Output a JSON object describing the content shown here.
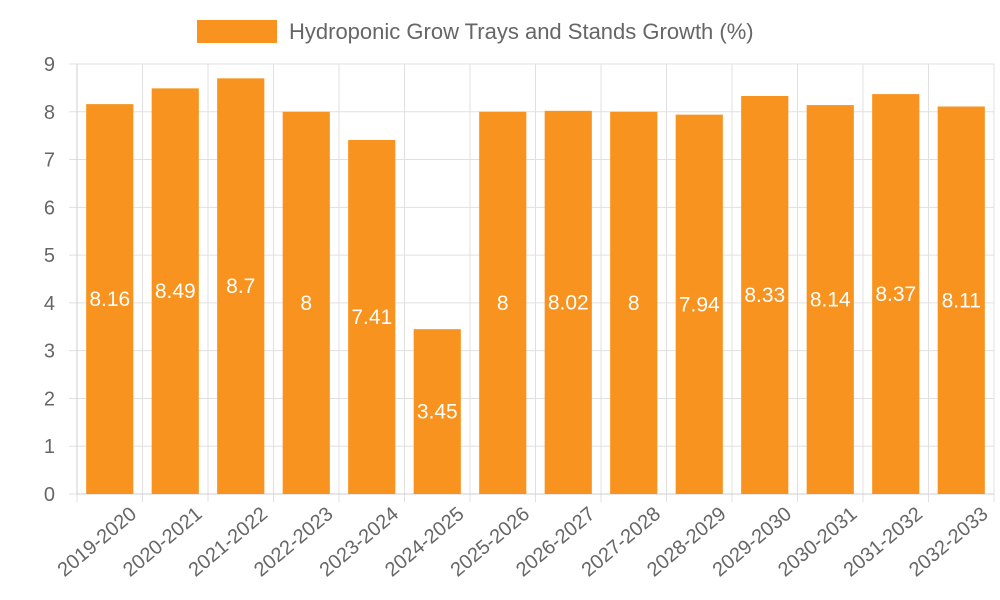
{
  "chart_data": {
    "type": "bar",
    "title": "",
    "legend": {
      "label": "Hydroponic Grow Trays and Stands Growth (%)",
      "position": "top"
    },
    "series": [
      {
        "name": "Hydroponic Grow Trays and Stands Growth (%)",
        "color": "#f7931e",
        "values": [
          8.16,
          8.49,
          8.7,
          8,
          7.41,
          3.45,
          8,
          8.02,
          8,
          7.94,
          8.33,
          8.14,
          8.37,
          8.11
        ]
      }
    ],
    "categories": [
      "2019-2020",
      "2020-2021",
      "2021-2022",
      "2022-2023",
      "2023-2024",
      "2024-2025",
      "2025-2026",
      "2026-2027",
      "2027-2028",
      "2028-2029",
      "2029-2030",
      "2030-2031",
      "2031-2032",
      "2032-2033"
    ],
    "data_labels": [
      "8.16",
      "8.49",
      "8.7",
      "8",
      "7.41",
      "3.45",
      "8",
      "8.02",
      "8",
      "7.94",
      "8.33",
      "8.14",
      "8.37",
      "8.11"
    ],
    "y_ticks": [
      "0",
      "1",
      "2",
      "3",
      "4",
      "5",
      "6",
      "7",
      "8",
      "9"
    ],
    "ylim": [
      0,
      9
    ],
    "xlabel": "",
    "ylabel": "",
    "grid": true
  }
}
